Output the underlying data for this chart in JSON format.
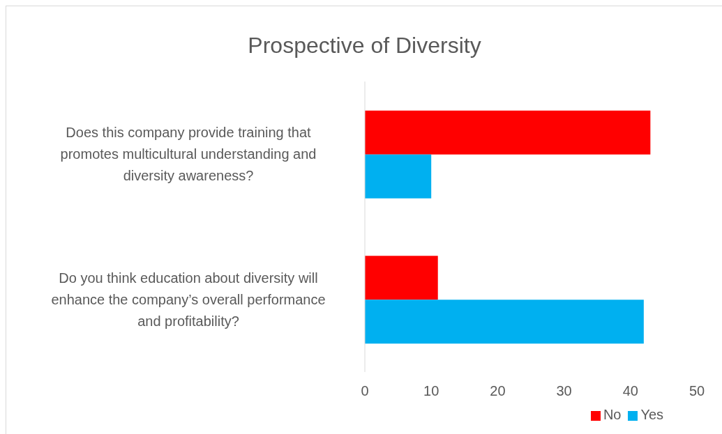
{
  "chart_data": {
    "type": "bar",
    "orientation": "horizontal",
    "title": "Prospective of Diversity",
    "categories": [
      "Does this company provide training that promotes multicultural understanding and diversity awareness?",
      "Do you think education about diversity will enhance the company’s overall performance and profitability?"
    ],
    "series": [
      {
        "name": "No",
        "color": "#ff0000",
        "values": [
          43,
          11
        ]
      },
      {
        "name": "Yes",
        "color": "#00b0f0",
        "values": [
          10,
          42
        ]
      }
    ],
    "xlim": [
      0,
      50
    ],
    "xticks": [
      0,
      10,
      20,
      30,
      40,
      50
    ],
    "grid": false,
    "legend": "bottom"
  }
}
